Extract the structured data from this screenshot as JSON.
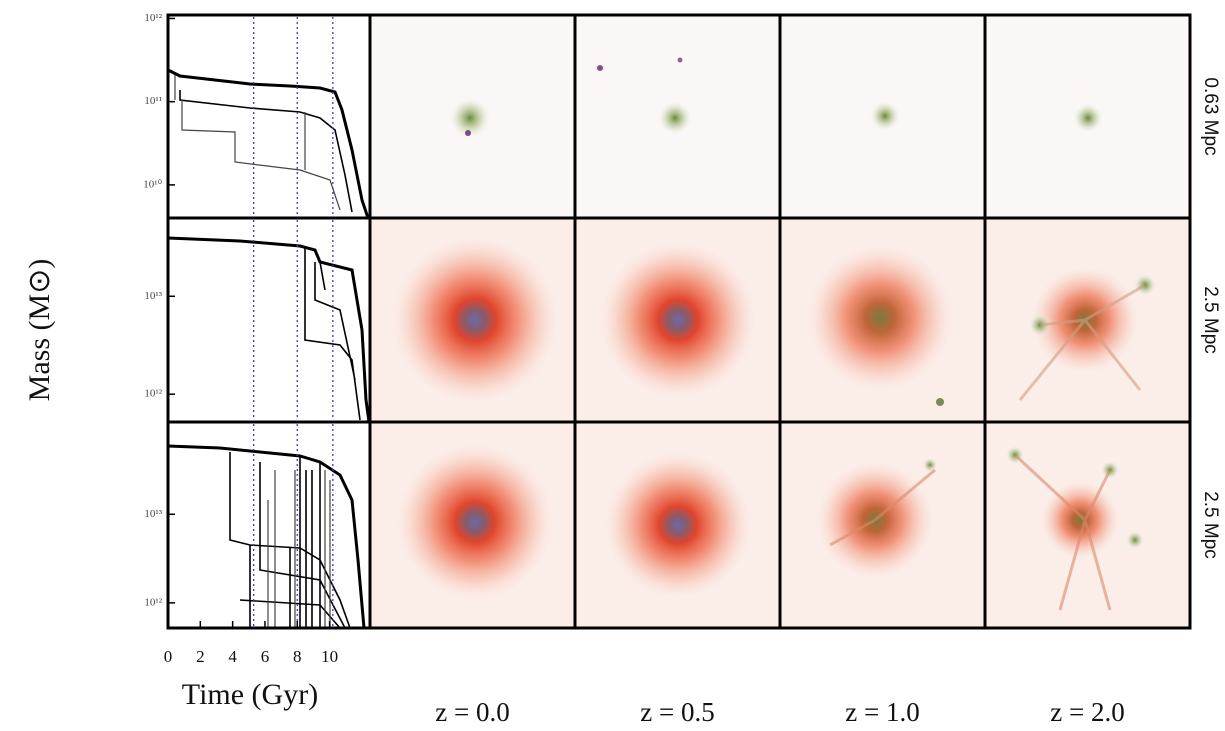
{
  "figure": {
    "y_label": "Mass (M⊙)",
    "x_label": "Time (Gyr)",
    "xlim": [
      0,
      12.5
    ],
    "xticks": [
      0,
      2,
      4,
      6,
      8,
      10
    ],
    "snapshot_times": [
      5.3,
      8.0,
      10.2
    ],
    "log_y": true,
    "rows": [
      {
        "scale": "0.63 Mpc",
        "ylim": [
          4000000000.0,
          1100000000000.0
        ],
        "yticks": [
          {
            "value": 1000000000000.0,
            "label": "10¹²"
          },
          {
            "value": 100000000000.0,
            "label": "10¹¹"
          },
          {
            "value": 10000000000.0,
            "label": "10¹⁰"
          }
        ]
      },
      {
        "scale": "2.5 Mpc",
        "ylim": [
          520000000000.0,
          63000000000000.0
        ],
        "yticks": [
          {
            "value": 10000000000000.0,
            "label": "10¹³"
          },
          {
            "value": 1000000000000.0,
            "label": "10¹²"
          }
        ]
      },
      {
        "scale": "2.5 Mpc",
        "ylim": [
          520000000000.0,
          110000000000000.0
        ],
        "yticks": [
          {
            "value": 10000000000000.0,
            "label": "10¹³"
          },
          {
            "value": 1000000000000.0,
            "label": "10¹²"
          }
        ]
      }
    ],
    "columns": [
      "z = 0.0",
      "z = 0.5",
      "z = 1.0",
      "z = 2.0"
    ]
  }
}
